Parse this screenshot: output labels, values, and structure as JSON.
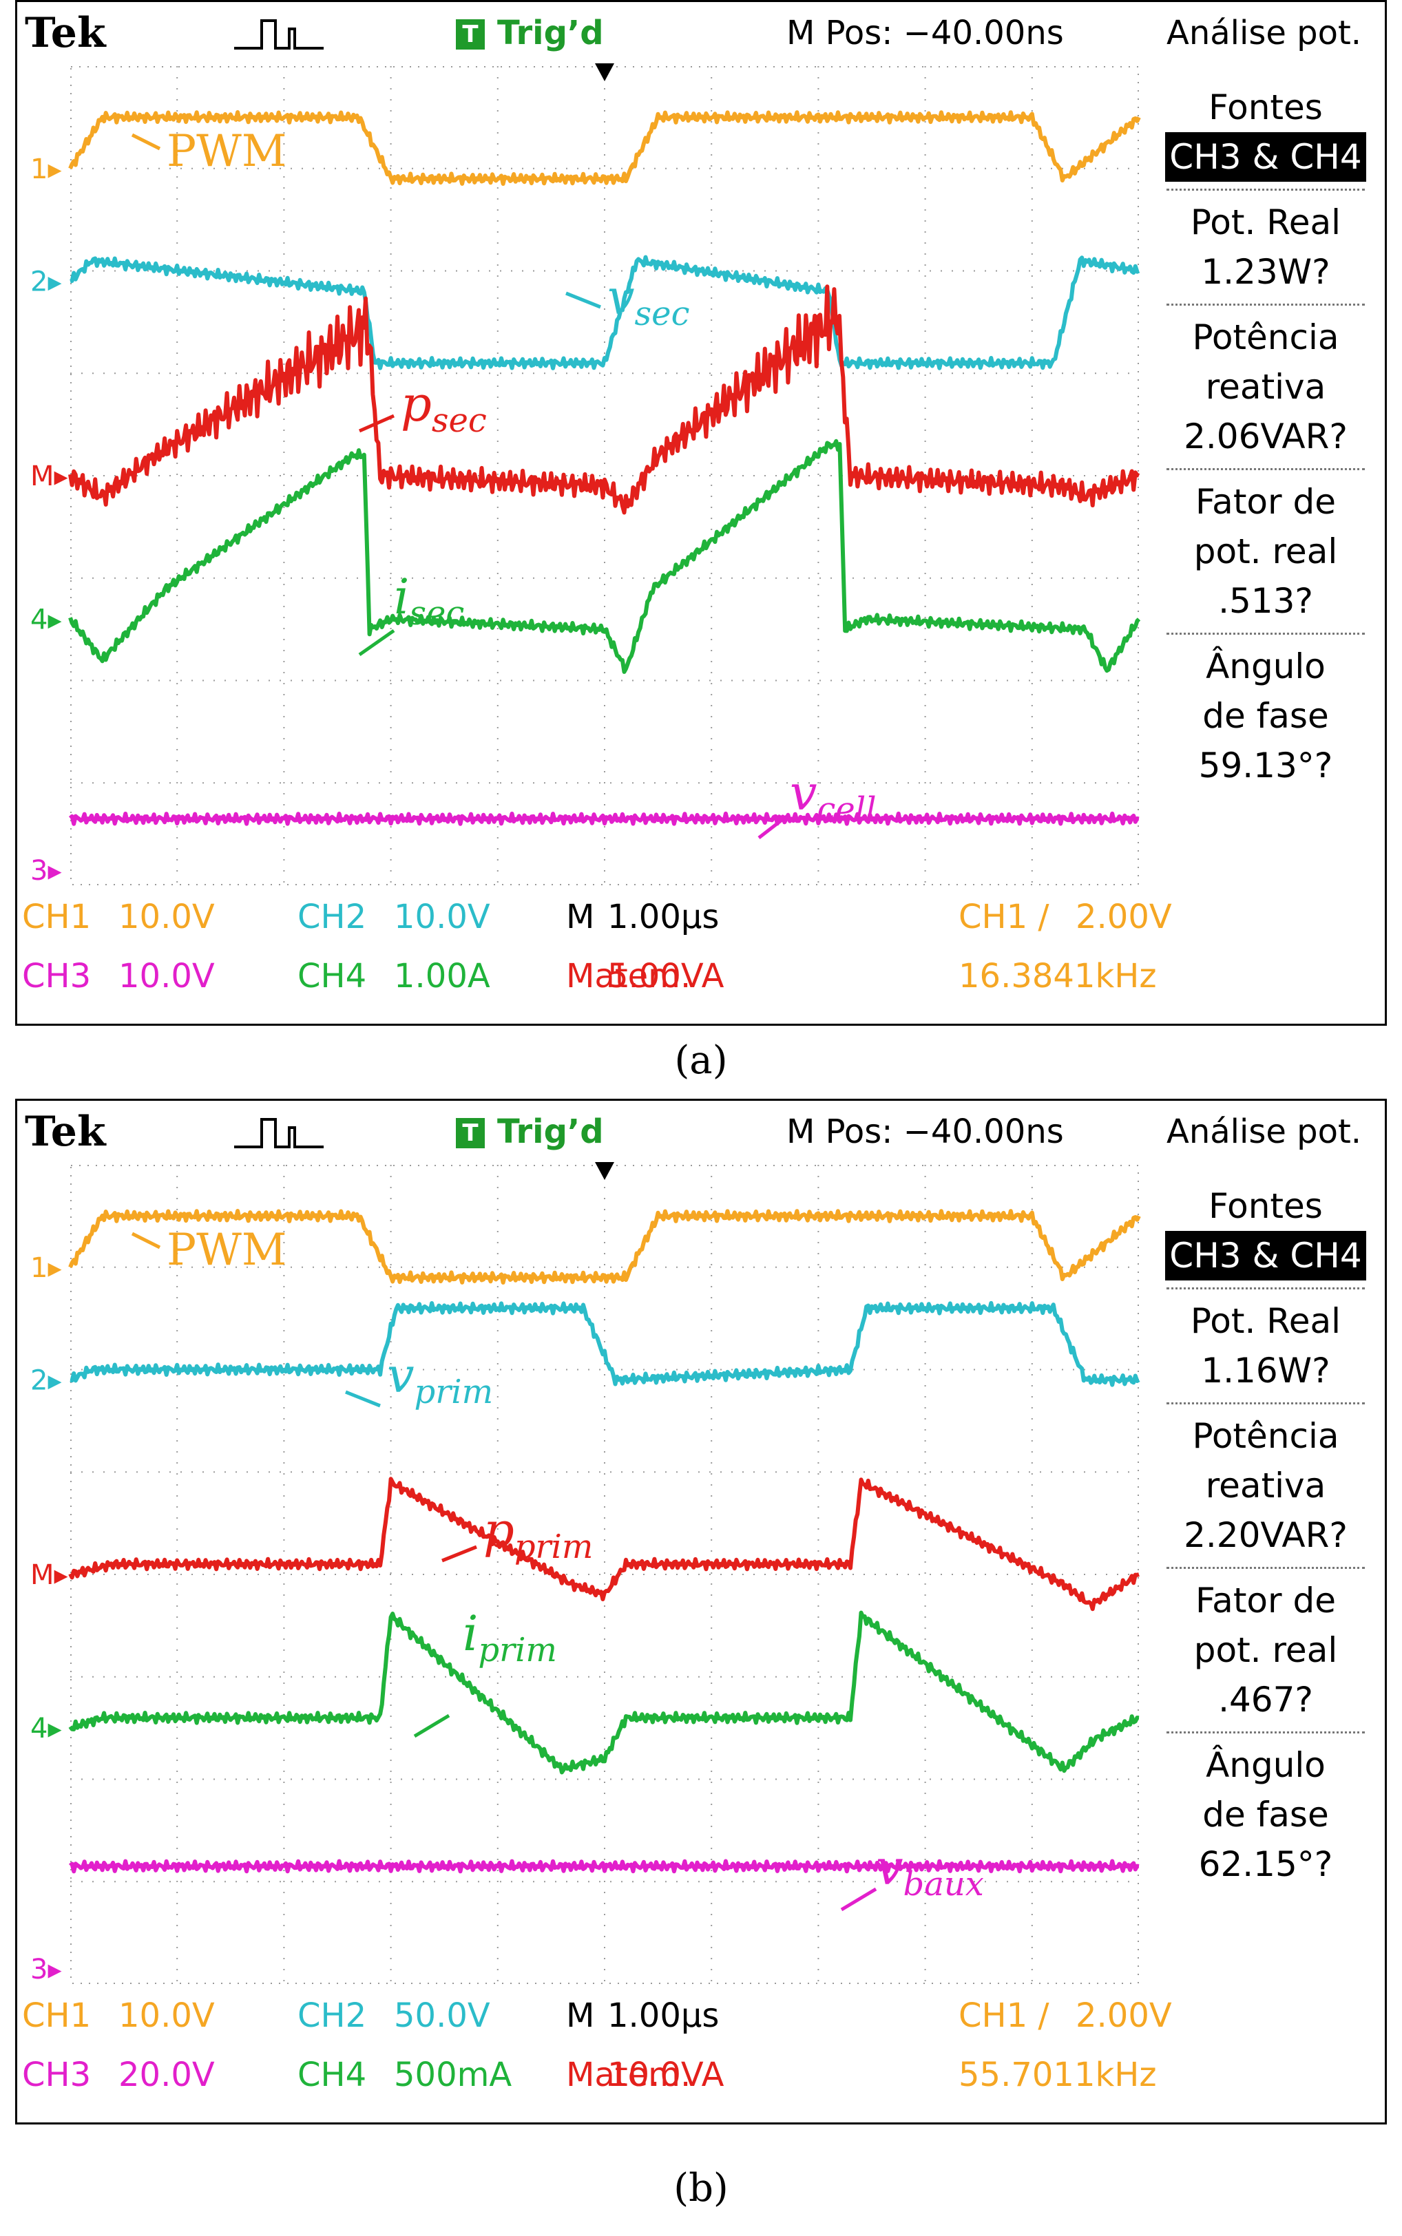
{
  "colors": {
    "ch1": "#f5a623",
    "ch2": "#2bbcc9",
    "math": "#e3201b",
    "ch4": "#1fb33a",
    "ch3": "#e21fcb",
    "grid": "#9a9a9a"
  },
  "panels": [
    {
      "id": "a",
      "header": {
        "brand": "Tek",
        "trig_icon": "T",
        "trig_status": "Trig’d",
        "mpos": "M Pos: −40.00ns",
        "mode": "Análise pot."
      },
      "right_panel": [
        {
          "lines": [
            "Fontes"
          ],
          "highlight": "CH3 & CH4"
        },
        {
          "lines": [
            "Pot. Real",
            "1.23W?"
          ]
        },
        {
          "lines": [
            "Potência",
            "reativa",
            "2.06VAR?"
          ]
        },
        {
          "lines": [
            "Fator de",
            "pot. real",
            ".513?"
          ]
        },
        {
          "lines": [
            "Ângulo",
            "de fase",
            "59.13°?"
          ]
        }
      ],
      "footer": {
        "row1": [
          {
            "ch": "CH1",
            "val": "10.0V",
            "color": "ch1"
          },
          {
            "ch": "CH2",
            "val": "10.0V",
            "color": "ch2"
          },
          {
            "ch": "M",
            "val": "1.00µs",
            "color": "black"
          },
          {
            "ch": "CH1 ∕",
            "val": "2.00V",
            "color": "ch1"
          }
        ],
        "row2": [
          {
            "ch": "CH3",
            "val": "10.0V",
            "color": "ch3"
          },
          {
            "ch": "CH4",
            "val": "1.00A",
            "color": "ch4"
          },
          {
            "ch": "Matem.",
            "val": "5.00VA",
            "color": "math"
          },
          {
            "ch": "",
            "val": "16.3841kHz",
            "color": "ch1"
          }
        ]
      },
      "channel_markers": [
        "1",
        "2",
        "M",
        "4",
        "3"
      ],
      "labels": {
        "pwm": "PWM",
        "v": {
          "main": "v",
          "sub": "sec"
        },
        "p": {
          "main": "p",
          "sub": "sec"
        },
        "i": {
          "main": "i",
          "sub": "sec"
        },
        "vb": {
          "main": "v",
          "sub": "cell"
        }
      },
      "caption": "(a)"
    },
    {
      "id": "b",
      "header": {
        "brand": "Tek",
        "trig_icon": "T",
        "trig_status": "Trig’d",
        "mpos": "M Pos: −40.00ns",
        "mode": "Análise pot."
      },
      "right_panel": [
        {
          "lines": [
            "Fontes"
          ],
          "highlight": "CH3 & CH4"
        },
        {
          "lines": [
            "Pot. Real",
            "1.16W?"
          ]
        },
        {
          "lines": [
            "Potência",
            "reativa",
            "2.20VAR?"
          ]
        },
        {
          "lines": [
            "Fator de",
            "pot. real",
            ".467?"
          ]
        },
        {
          "lines": [
            "Ângulo",
            "de fase",
            "62.15°?"
          ]
        }
      ],
      "footer": {
        "row1": [
          {
            "ch": "CH1",
            "val": "10.0V",
            "color": "ch1"
          },
          {
            "ch": "CH2",
            "val": "50.0V",
            "color": "ch2"
          },
          {
            "ch": "M",
            "val": "1.00µs",
            "color": "black"
          },
          {
            "ch": "CH1 ∕",
            "val": "2.00V",
            "color": "ch1"
          }
        ],
        "row2": [
          {
            "ch": "CH3",
            "val": "20.0V",
            "color": "ch3"
          },
          {
            "ch": "CH4",
            "val": "500mA",
            "color": "ch4"
          },
          {
            "ch": "Matem.",
            "val": "10.0VA",
            "color": "math"
          },
          {
            "ch": "",
            "val": "55.7011kHz",
            "color": "ch1"
          }
        ]
      },
      "channel_markers": [
        "1",
        "2",
        "M",
        "4",
        "3"
      ],
      "labels": {
        "pwm": "PWM",
        "v": {
          "main": "v",
          "sub": "prim"
        },
        "p": {
          "main": "p",
          "sub": "prim"
        },
        "i": {
          "main": "i",
          "sub": "prim"
        },
        "vb": {
          "main": "v",
          "sub": "baux"
        }
      },
      "caption": "(b)"
    }
  ],
  "chart_data": [
    {
      "type": "line",
      "panel": "a",
      "x_unit": "divisions (1.00µs/div)",
      "xlim": [
        0,
        10
      ],
      "ylim": [
        0,
        8
      ],
      "grid": true,
      "series": [
        {
          "name": "PWM",
          "channel": "CH1",
          "x": [
            0,
            0.3,
            2.7,
            3.0,
            5.2,
            5.5,
            9.0,
            9.3,
            10
          ],
          "y": [
            7.0,
            7.5,
            7.5,
            6.9,
            6.9,
            7.5,
            7.5,
            6.9,
            7.5
          ]
        },
        {
          "name": "vsec",
          "channel": "CH2",
          "x": [
            0,
            0.2,
            2.75,
            2.85,
            5.0,
            5.3,
            7.1,
            7.2,
            9.2,
            9.45,
            10
          ],
          "y": [
            5.9,
            6.1,
            5.8,
            5.1,
            5.1,
            6.1,
            5.8,
            5.1,
            5.1,
            6.1,
            6.0
          ]
        },
        {
          "name": "psec",
          "channel": "math",
          "x": [
            0,
            0.3,
            0.8,
            2.7,
            2.78,
            2.9,
            5.0,
            5.2,
            5.5,
            7.1,
            7.18,
            7.3,
            9.3,
            9.5,
            10
          ],
          "y": [
            4.0,
            3.8,
            4.2,
            5.4,
            5.5,
            4.0,
            3.9,
            3.7,
            4.2,
            5.5,
            5.6,
            4.0,
            3.9,
            3.8,
            4.0
          ]
        },
        {
          "name": "isec",
          "channel": "CH4",
          "x": [
            0,
            0.3,
            0.9,
            2.65,
            2.75,
            2.8,
            3.0,
            5.0,
            5.2,
            5.45,
            7.1,
            7.2,
            7.25,
            7.45,
            9.5,
            9.7,
            10
          ],
          "y": [
            2.6,
            2.2,
            2.9,
            4.2,
            4.2,
            2.5,
            2.6,
            2.5,
            2.1,
            2.9,
            4.3,
            4.3,
            2.5,
            2.6,
            2.5,
            2.1,
            2.6
          ]
        },
        {
          "name": "vcell",
          "channel": "CH3",
          "x": [
            0,
            10
          ],
          "y": [
            0.65,
            0.65
          ]
        }
      ]
    },
    {
      "type": "line",
      "panel": "b",
      "x_unit": "divisions (1.00µs/div)",
      "xlim": [
        0,
        10
      ],
      "ylim": [
        0,
        8
      ],
      "grid": true,
      "series": [
        {
          "name": "PWM",
          "channel": "CH1",
          "x": [
            0,
            0.3,
            2.7,
            3.0,
            5.2,
            5.5,
            9.0,
            9.3,
            10
          ],
          "y": [
            7.0,
            7.5,
            7.5,
            6.9,
            6.9,
            7.5,
            7.5,
            6.9,
            7.5
          ]
        },
        {
          "name": "vprim",
          "channel": "CH2",
          "x": [
            0,
            0.2,
            2.9,
            3.05,
            4.8,
            5.1,
            7.3,
            7.45,
            9.2,
            9.5,
            10
          ],
          "y": [
            5.9,
            6.0,
            6.0,
            6.6,
            6.6,
            5.9,
            6.0,
            6.6,
            6.6,
            5.9,
            5.9
          ]
        },
        {
          "name": "pprim",
          "channel": "math",
          "x": [
            0,
            0.4,
            2.9,
            3.0,
            4.7,
            5.0,
            5.2,
            7.3,
            7.4,
            9.3,
            9.55,
            10
          ],
          "y": [
            4.0,
            4.1,
            4.1,
            4.9,
            3.9,
            3.8,
            4.1,
            4.1,
            4.9,
            3.9,
            3.7,
            4.0
          ]
        },
        {
          "name": "iprim",
          "channel": "CH4",
          "x": [
            0,
            0.3,
            2.9,
            3.0,
            4.6,
            5.0,
            5.2,
            7.3,
            7.4,
            9.3,
            9.6,
            10
          ],
          "y": [
            2.5,
            2.6,
            2.6,
            3.6,
            2.1,
            2.2,
            2.6,
            2.6,
            3.6,
            2.1,
            2.4,
            2.6
          ]
        },
        {
          "name": "vbaux",
          "channel": "CH3",
          "x": [
            0,
            10
          ],
          "y": [
            1.15,
            1.15
          ]
        }
      ]
    }
  ]
}
